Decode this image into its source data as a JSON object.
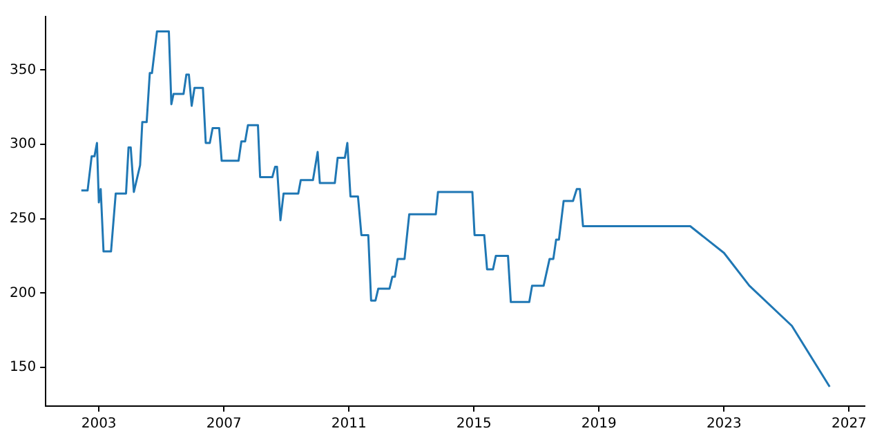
{
  "chart_data": {
    "type": "line",
    "xlim": [
      2001.3,
      2027.5
    ],
    "ylim": [
      124,
      386
    ],
    "xticks": [
      2003,
      2007,
      2011,
      2015,
      2019,
      2023,
      2027
    ],
    "yticks": [
      150,
      200,
      250,
      300,
      350
    ],
    "grid": false,
    "legend": false,
    "marker": "none",
    "line_style": "solid",
    "series": [
      {
        "color": "#1f77b4",
        "x": [
          2002.44,
          2002.64,
          2002.77,
          2002.86,
          2002.94,
          2003.0,
          2003.06,
          2003.15,
          2003.39,
          2003.54,
          2003.87,
          2003.95,
          2004.02,
          2004.12,
          2004.32,
          2004.39,
          2004.53,
          2004.63,
          2004.7,
          2004.86,
          2005.24,
          2005.32,
          2005.39,
          2005.71,
          2005.8,
          2005.88,
          2005.97,
          2006.06,
          2006.33,
          2006.42,
          2006.55,
          2006.64,
          2006.85,
          2006.93,
          2007.47,
          2007.56,
          2007.68,
          2007.77,
          2008.09,
          2008.16,
          2008.55,
          2008.64,
          2008.7,
          2008.81,
          2008.91,
          2009.38,
          2009.46,
          2009.85,
          2010.0,
          2010.07,
          2010.55,
          2010.64,
          2010.87,
          2010.95,
          2011.05,
          2011.29,
          2011.4,
          2011.62,
          2011.71,
          2011.85,
          2011.94,
          2012.3,
          2012.39,
          2012.47,
          2012.56,
          2012.78,
          2012.93,
          2013.78,
          2013.85,
          2014.95,
          2015.02,
          2015.33,
          2015.42,
          2015.61,
          2015.7,
          2016.09,
          2016.18,
          2016.77,
          2016.86,
          2017.23,
          2017.42,
          2017.54,
          2017.63,
          2017.72,
          2017.87,
          2018.17,
          2018.29,
          2018.39,
          2018.49,
          2021.92,
          2022.46,
          2023.0,
          2023.81,
          2025.17,
          2026.38
        ],
        "values": [
          269,
          269,
          292,
          292,
          301,
          261,
          270,
          228,
          228,
          267,
          267,
          298,
          298,
          268,
          286,
          315,
          315,
          348,
          348,
          376,
          376,
          327,
          334,
          334,
          347,
          347,
          326,
          338,
          338,
          301,
          301,
          311,
          311,
          289,
          289,
          302,
          302,
          313,
          313,
          278,
          278,
          285,
          285,
          249,
          267,
          267,
          276,
          276,
          295,
          274,
          274,
          291,
          291,
          301,
          265,
          265,
          239,
          239,
          195,
          195,
          203,
          203,
          211,
          211,
          223,
          223,
          253,
          253,
          268,
          268,
          239,
          239,
          216,
          216,
          225,
          225,
          194,
          194,
          205,
          205,
          223,
          223,
          236,
          236,
          262,
          262,
          270,
          270,
          245,
          245,
          236,
          227,
          205,
          178,
          137
        ]
      }
    ]
  }
}
